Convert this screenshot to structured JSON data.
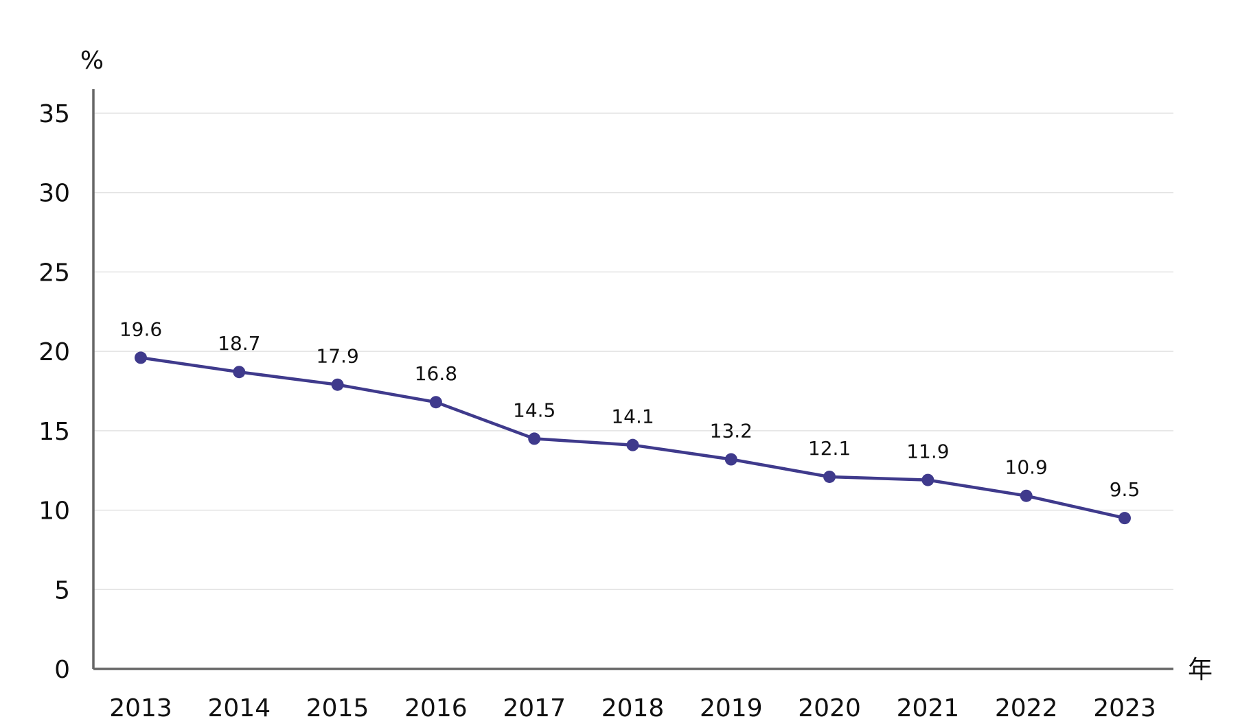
{
  "chart_data": {
    "type": "line",
    "ylabel": "%",
    "xlabel": "年",
    "ylim": [
      0,
      35
    ],
    "yticks": [
      "0",
      "5",
      "10",
      "15",
      "20",
      "25",
      "30",
      "35"
    ],
    "grid": true,
    "legend": "none",
    "categories": [
      "2013",
      "2014",
      "2015",
      "2016",
      "2017",
      "2018",
      "2019",
      "2020",
      "2021",
      "2022",
      "2023"
    ],
    "series": [
      {
        "values": [
          19.6,
          18.7,
          17.9,
          16.8,
          14.5,
          14.1,
          13.2,
          12.1,
          11.9,
          10.9,
          9.5
        ],
        "labels": [
          "19.6",
          "18.7",
          "17.9",
          "16.8",
          "14.5",
          "14.1",
          "13.2",
          "12.1",
          "11.9",
          "10.9",
          "9.5"
        ],
        "color": "#3f3a8c"
      }
    ],
    "colors": {
      "axis": "#666666",
      "grid": "#e3e3e3",
      "text": "#111111"
    }
  }
}
